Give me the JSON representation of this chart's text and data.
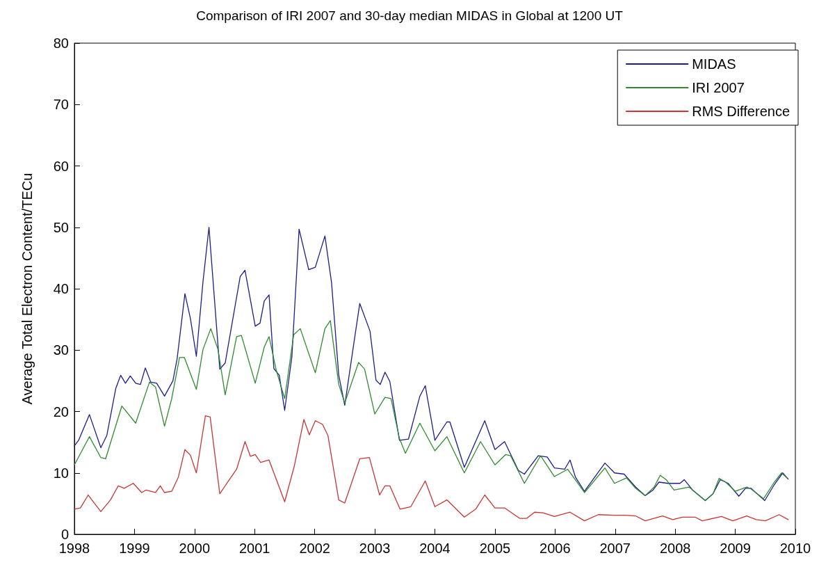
{
  "chart_data": {
    "type": "line",
    "title": "Comparison of IRI 2007 and 30-day median MIDAS in Global at 1200 UT",
    "ylabel": "Average Total Electron Content/TECu",
    "xlim": [
      1998,
      2010
    ],
    "xticks": [
      1998,
      1999,
      2000,
      2001,
      2002,
      2003,
      2004,
      2005,
      2006,
      2007,
      2008,
      2009,
      2010
    ],
    "ylim": [
      0,
      80
    ],
    "yticks": [
      0,
      10,
      20,
      30,
      40,
      50,
      60,
      70,
      80
    ],
    "grid": false,
    "legend": "top right",
    "marker": "none",
    "line_style": "solid",
    "series": [
      {
        "name": "MIDAS",
        "color": "#1c1c8f",
        "x": [
          1998.0,
          1998.07,
          1998.25,
          1998.44,
          1998.54,
          1998.69,
          1998.77,
          1998.85,
          1998.93,
          1999.02,
          1999.1,
          1999.18,
          1999.27,
          1999.37,
          1999.5,
          1999.64,
          1999.71,
          1999.84,
          1999.93,
          2000.03,
          2000.14,
          2000.24,
          2000.42,
          2000.51,
          2000.76,
          2000.84,
          2001.01,
          2001.09,
          2001.16,
          2001.24,
          2001.32,
          2001.41,
          2001.5,
          2001.62,
          2001.74,
          2001.9,
          2002.01,
          2002.17,
          2002.28,
          2002.4,
          2002.5,
          2002.63,
          2002.75,
          2002.92,
          2003.02,
          2003.09,
          2003.17,
          2003.25,
          2003.41,
          2003.56,
          2003.75,
          2003.84,
          2004.0,
          2004.2,
          2004.25,
          2004.49,
          2004.83,
          2005.0,
          2005.16,
          2005.39,
          2005.49,
          2005.72,
          2005.87,
          2005.99,
          2006.16,
          2006.25,
          2006.34,
          2006.49,
          2006.83,
          2006.99,
          2007.15,
          2007.34,
          2007.5,
          2007.63,
          2007.73,
          2007.88,
          2008.08,
          2008.15,
          2008.29,
          2008.5,
          2008.63,
          2008.75,
          2008.88,
          2009.06,
          2009.17,
          2009.26,
          2009.49,
          2009.65,
          2009.79,
          2009.88
        ],
        "values": [
          14.4,
          15.3,
          19.5,
          14.1,
          16.1,
          23.8,
          25.9,
          24.6,
          25.8,
          24.6,
          24.4,
          27.1,
          24.8,
          24.6,
          22.5,
          25.0,
          28.6,
          39.2,
          35.2,
          29.0,
          41.1,
          50,
          26.9,
          27.9,
          42.0,
          43.0,
          33.9,
          34.4,
          38.0,
          39.0,
          27.0,
          25.9,
          20.2,
          28.9,
          49.7,
          43.1,
          43.5,
          48.6,
          41.0,
          25.9,
          21.0,
          29.7,
          37.6,
          33.1,
          25.1,
          24.4,
          26.4,
          24.9,
          15.3,
          15.5,
          22.5,
          24.2,
          15.3,
          18.3,
          18.3,
          10.9,
          18.5,
          13.8,
          15.1,
          10.4,
          9.8,
          12.8,
          12.6,
          10.8,
          10.6,
          12.1,
          9.3,
          7.0,
          11.6,
          10.0,
          9.8,
          7.7,
          6.3,
          7.2,
          8.5,
          8.3,
          8.3,
          8.9,
          7.2,
          5.5,
          6.6,
          8.9,
          8.3,
          6.2,
          7.5,
          7.5,
          5.5,
          8.1,
          10.0,
          9.0
        ]
      },
      {
        "name": "IRI 2007",
        "color": "#2e8b2e",
        "x": [
          1998.0,
          1998.25,
          1998.44,
          1998.52,
          1998.79,
          1999.02,
          1999.25,
          1999.35,
          1999.5,
          1999.62,
          1999.75,
          1999.83,
          2000.03,
          2000.14,
          2000.27,
          2000.39,
          2000.51,
          2000.7,
          2000.78,
          2001.01,
          2001.16,
          2001.24,
          2001.36,
          2001.5,
          2001.65,
          2001.76,
          2002.01,
          2002.17,
          2002.26,
          2002.4,
          2002.5,
          2002.73,
          2002.83,
          2003.0,
          2003.17,
          2003.27,
          2003.41,
          2003.51,
          2003.75,
          2004.0,
          2004.2,
          2004.49,
          2004.76,
          2005.0,
          2005.18,
          2005.26,
          2005.49,
          2005.76,
          2005.99,
          2006.21,
          2006.49,
          2006.83,
          2006.99,
          2007.19,
          2007.34,
          2007.5,
          2007.65,
          2007.75,
          2007.85,
          2007.98,
          2008.23,
          2008.5,
          2008.63,
          2008.73,
          2008.84,
          2009.0,
          2009.19,
          2009.26,
          2009.47,
          2009.65,
          2009.77,
          2009.86
        ],
        "values": [
          11.3,
          15.9,
          12.5,
          12.3,
          20.9,
          18.1,
          24.8,
          24.0,
          17.6,
          22.1,
          28.8,
          28.8,
          23.6,
          30.1,
          33.5,
          30.1,
          22.7,
          32.2,
          32.4,
          24.6,
          30.5,
          32.2,
          26.7,
          22.1,
          32.5,
          33.5,
          26.3,
          33.5,
          34.8,
          24.4,
          21.4,
          28.0,
          26.9,
          19.6,
          22.3,
          22.1,
          15.6,
          13.2,
          18.1,
          13.6,
          15.9,
          10.0,
          15.1,
          11.3,
          13.0,
          12.8,
          8.3,
          12.8,
          9.4,
          10.6,
          6.8,
          10.8,
          8.3,
          9.2,
          7.5,
          6.3,
          7.7,
          9.6,
          8.9,
          7.2,
          7.7,
          5.5,
          6.6,
          9.1,
          8.5,
          7.0,
          7.7,
          7.4,
          5.8,
          8.5,
          10.0,
          9.2
        ]
      },
      {
        "name": "RMS Difference",
        "color": "#cc3333",
        "x": [
          1998.0,
          1998.1,
          1998.23,
          1998.44,
          1998.6,
          1998.73,
          1998.83,
          1998.98,
          1999.12,
          1999.19,
          1999.35,
          1999.43,
          1999.5,
          1999.62,
          1999.73,
          1999.84,
          1999.93,
          2000.03,
          2000.18,
          2000.26,
          2000.42,
          2000.58,
          2000.7,
          2000.84,
          2000.93,
          2001.01,
          2001.1,
          2001.24,
          2001.5,
          2001.66,
          2001.82,
          2001.91,
          2002.01,
          2002.13,
          2002.22,
          2002.4,
          2002.5,
          2002.75,
          2002.91,
          2003.08,
          2003.17,
          2003.25,
          2003.42,
          2003.6,
          2003.84,
          2004.0,
          2004.2,
          2004.49,
          2004.68,
          2004.83,
          2005.0,
          2005.16,
          2005.41,
          2005.53,
          2005.66,
          2005.8,
          2005.99,
          2006.25,
          2006.49,
          2006.72,
          2006.99,
          2007.18,
          2007.34,
          2007.5,
          2007.79,
          2007.96,
          2008.12,
          2008.33,
          2008.45,
          2008.77,
          2008.96,
          2009.19,
          2009.35,
          2009.5,
          2009.73,
          2009.88
        ],
        "values": [
          4.1,
          4.3,
          6.4,
          3.7,
          5.6,
          7.9,
          7.5,
          8.3,
          6.8,
          7.2,
          6.8,
          7.9,
          6.8,
          7.0,
          9.3,
          13.8,
          12.9,
          10.0,
          19.3,
          19.1,
          6.6,
          8.9,
          10.6,
          15.1,
          12.7,
          13.0,
          11.7,
          12.1,
          5.3,
          11.1,
          18.7,
          16.2,
          18.5,
          17.9,
          16.1,
          5.6,
          5.1,
          12.3,
          12.5,
          6.4,
          7.9,
          7.9,
          4.1,
          4.5,
          8.7,
          4.5,
          5.6,
          2.8,
          4.1,
          6.4,
          4.3,
          4.3,
          2.6,
          2.6,
          3.6,
          3.5,
          2.9,
          3.6,
          2.2,
          3.2,
          3.1,
          3.1,
          3.0,
          2.2,
          3.0,
          2.4,
          2.8,
          2.8,
          2.2,
          2.9,
          2.2,
          3.0,
          2.4,
          2.2,
          3.2,
          2.4
        ]
      }
    ]
  }
}
